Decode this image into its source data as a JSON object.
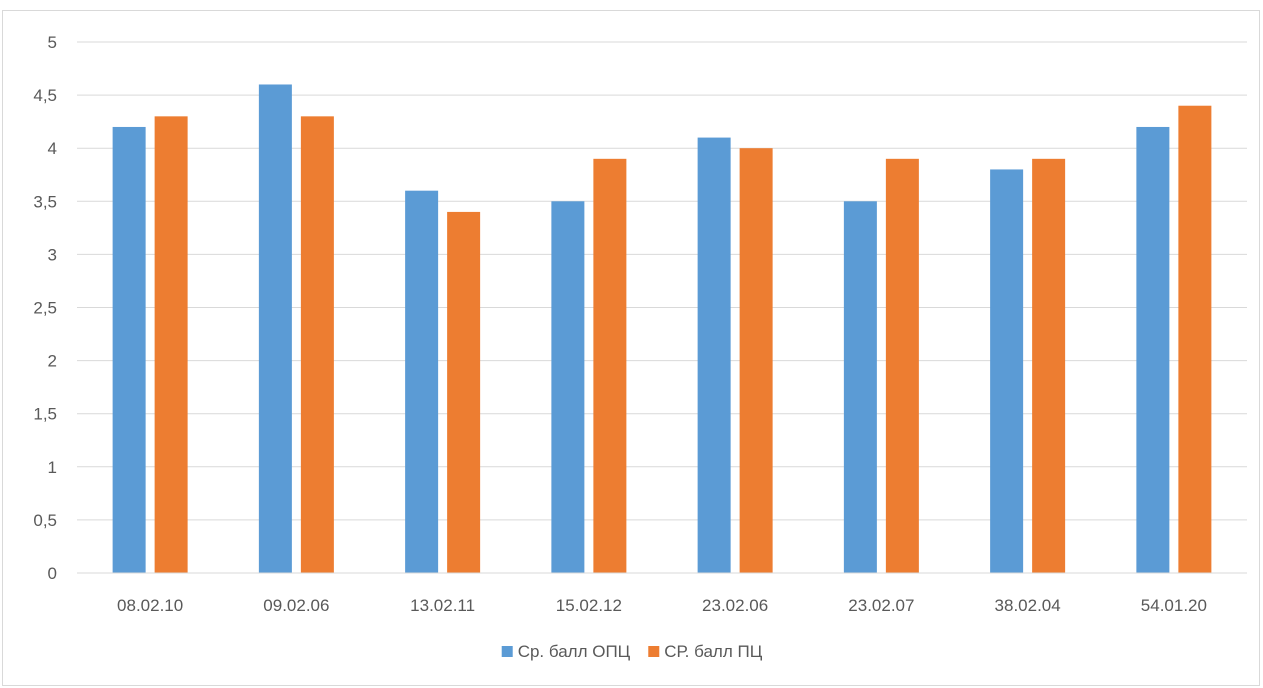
{
  "chart_data": {
    "type": "bar",
    "title": "",
    "xlabel": "",
    "ylabel": "",
    "categories": [
      "08.02.10",
      "09.02.06",
      "13.02.11",
      "15.02.12",
      "23.02.06",
      "23.02.07",
      "38.02.04",
      "54.01.20"
    ],
    "series": [
      {
        "name": "Ср. балл ОПЦ",
        "color": "#5b9bd5",
        "values": [
          4.2,
          4.6,
          3.6,
          3.5,
          4.1,
          3.5,
          3.8,
          4.2
        ]
      },
      {
        "name": "СР. балл ПЦ",
        "color": "#ed7d31",
        "values": [
          4.3,
          4.3,
          3.4,
          3.9,
          4.0,
          3.9,
          3.9,
          4.4
        ]
      }
    ],
    "ylim": [
      0,
      5
    ],
    "yticks": [
      0,
      0.5,
      1,
      1.5,
      2,
      2.5,
      3,
      3.5,
      4,
      4.5,
      5
    ],
    "ytick_labels": [
      "0",
      "0,5",
      "1",
      "1,5",
      "2",
      "2,5",
      "3",
      "3,5",
      "4",
      "4,5",
      "5"
    ],
    "grid": true,
    "legend_position": "bottom"
  }
}
